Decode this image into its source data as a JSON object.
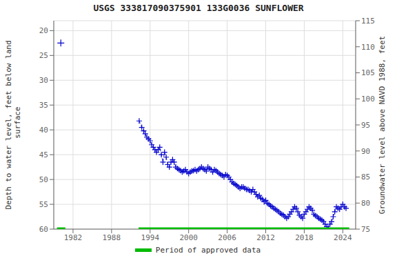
{
  "chart_data": {
    "type": "line",
    "title": "USGS 333817090375901 133G0036 SUNFLOWER",
    "ylabel": "Depth to water level, feet below land\n surface",
    "y2label": "Groundwater level above NAVD 1988, feet",
    "xlim": [
      1979,
      2026
    ],
    "xticks": [
      1982,
      1988,
      1994,
      2000,
      2006,
      2012,
      2018,
      2024
    ],
    "ylim": [
      60,
      18
    ],
    "yticks": [
      20,
      25,
      30,
      35,
      40,
      45,
      50,
      55,
      60
    ],
    "y2lim": [
      75,
      115
    ],
    "y2ticks": [
      75,
      80,
      85,
      90,
      95,
      100,
      105,
      110,
      115
    ],
    "grid": true,
    "legend": "bottom",
    "series": [
      {
        "type": "scatter",
        "marker": "+",
        "line_style": "none",
        "color": "#0000cc",
        "x": [
          1980.1
        ],
        "values": [
          22.5
        ]
      },
      {
        "type": "line",
        "marker": "+",
        "line_style": "dashed",
        "color": "#0000cc",
        "x": [
          1992.3,
          1992.7,
          1993.0,
          1993.25,
          1993.5,
          1993.75,
          1994.0,
          1994.25,
          1994.5,
          1994.75,
          1995.0,
          1995.25,
          1995.5,
          1995.75,
          1996.0,
          1996.25,
          1996.5,
          1996.75,
          1997.0,
          1997.25,
          1997.5,
          1997.75,
          1998.0,
          1998.25,
          1998.5,
          1998.75,
          1999.0,
          1999.25,
          1999.5,
          1999.75,
          2000.0,
          2000.25,
          2000.5,
          2000.75,
          2001.0,
          2001.25,
          2001.5,
          2001.75,
          2002.0,
          2002.25,
          2002.5,
          2002.75,
          2003.0,
          2003.25,
          2003.5,
          2003.75,
          2004.0,
          2004.25,
          2004.5,
          2004.75,
          2005.0,
          2005.25,
          2005.5,
          2005.75,
          2006.0,
          2006.25,
          2006.5,
          2006.75,
          2007.0,
          2007.25,
          2007.5,
          2007.75,
          2008.0,
          2008.25,
          2008.5,
          2008.75,
          2009.0,
          2009.25,
          2009.5,
          2009.75,
          2010.0,
          2010.25,
          2010.5,
          2010.75,
          2011.0,
          2011.25,
          2011.5,
          2011.75,
          2012.0,
          2012.25,
          2012.5,
          2012.75,
          2013.0,
          2013.25,
          2013.5,
          2013.75,
          2014.0,
          2014.25,
          2014.5,
          2014.75,
          2015.0,
          2015.25,
          2015.5,
          2015.75,
          2016.0,
          2016.25,
          2016.5,
          2016.75,
          2017.0,
          2017.25,
          2017.5,
          2017.75,
          2018.0,
          2018.25,
          2018.5,
          2018.75,
          2019.0,
          2019.25,
          2019.5,
          2019.75,
          2020.0,
          2020.25,
          2020.5,
          2020.75,
          2021.0,
          2021.25,
          2021.5,
          2021.75,
          2022.0,
          2022.25,
          2022.5,
          2022.75,
          2023.0,
          2023.25,
          2023.5,
          2023.75,
          2024.0,
          2024.25,
          2024.5
        ],
        "values": [
          38.2,
          39.5,
          40.2,
          40.8,
          41.5,
          41.8,
          42.2,
          43.0,
          43.5,
          44.0,
          44.5,
          44.0,
          43.5,
          45.0,
          46.5,
          44.5,
          45.5,
          47.0,
          47.5,
          46.5,
          46.0,
          46.5,
          47.5,
          47.8,
          48.0,
          48.2,
          48.5,
          48.3,
          48.0,
          48.5,
          48.8,
          48.5,
          48.3,
          48.2,
          48.0,
          48.3,
          48.0,
          47.8,
          47.5,
          47.8,
          48.0,
          48.3,
          47.5,
          47.8,
          48.0,
          48.5,
          48.0,
          48.2,
          48.5,
          48.8,
          49.0,
          49.2,
          49.5,
          49.0,
          49.2,
          49.5,
          50.0,
          50.5,
          50.8,
          51.0,
          51.2,
          51.5,
          51.8,
          51.5,
          51.5,
          51.8,
          52.0,
          52.0,
          52.2,
          52.5,
          52.0,
          52.5,
          53.0,
          53.5,
          53.2,
          53.8,
          54.0,
          54.5,
          54.2,
          54.8,
          55.0,
          55.3,
          55.5,
          55.8,
          56.0,
          56.2,
          56.5,
          56.8,
          57.0,
          57.2,
          57.5,
          57.8,
          57.5,
          57.0,
          56.5,
          56.0,
          55.5,
          55.8,
          56.5,
          57.2,
          57.5,
          57.8,
          57.0,
          56.5,
          56.0,
          55.5,
          55.8,
          56.2,
          57.0,
          57.3,
          57.5,
          57.8,
          58.0,
          58.2,
          58.5,
          59.0,
          59.5,
          59.8,
          59.0,
          58.5,
          57.5,
          56.5,
          55.5,
          55.8,
          56.0,
          55.5,
          55.0,
          55.5,
          55.8
        ]
      },
      {
        "name": "Period of approved data",
        "type": "line",
        "marker": "none",
        "line_style": "solid",
        "color": "#00bb00",
        "x": [
          1979.5,
          1980.8
        ],
        "values": [
          60,
          60
        ]
      },
      {
        "name": "Period of approved data",
        "type": "line",
        "marker": "none",
        "line_style": "solid",
        "color": "#00bb00",
        "x": [
          1992.2,
          2025.0
        ],
        "values": [
          60,
          60
        ]
      }
    ]
  }
}
